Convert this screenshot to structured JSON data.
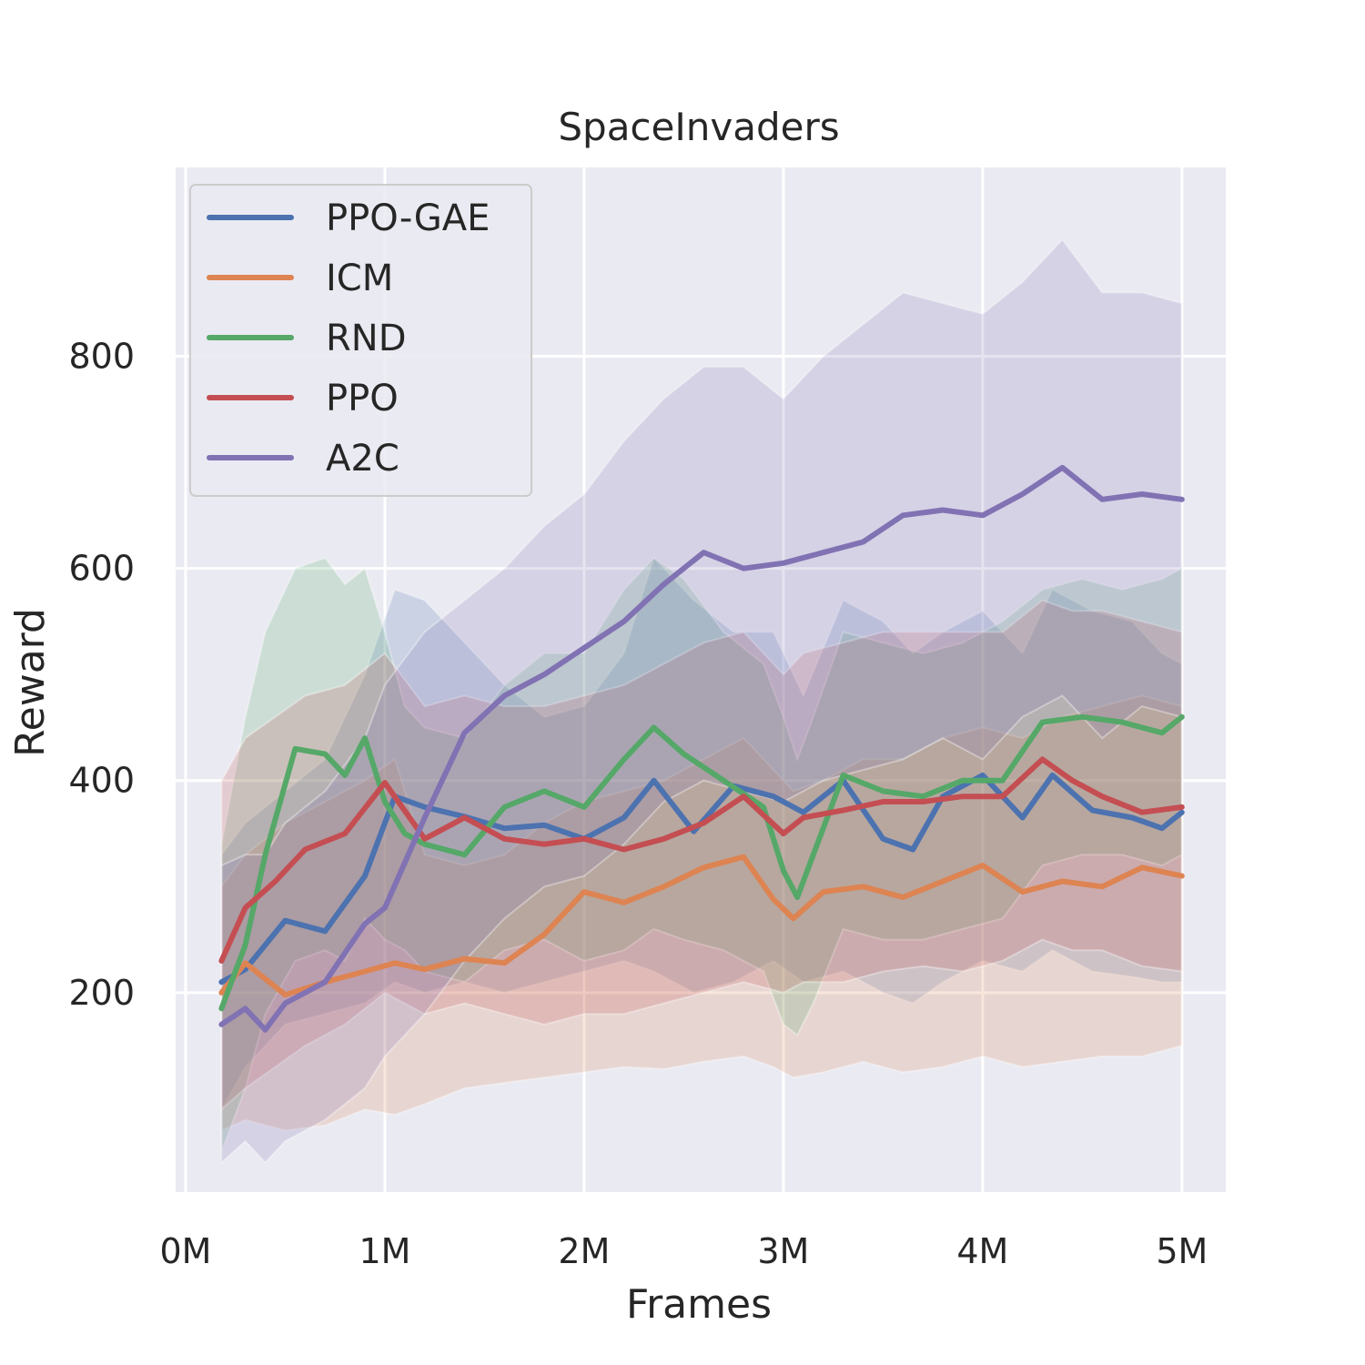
{
  "chart_data": {
    "type": "line",
    "title": "SpaceInvaders",
    "xlabel": "Frames",
    "ylabel": "Reward",
    "xlim": [
      -0.05,
      5.22
    ],
    "ylim": [
      12,
      978
    ],
    "x_unit": "M frames",
    "xticks": [
      0,
      1,
      2,
      3,
      4,
      5
    ],
    "xtick_labels": [
      "0M",
      "1M",
      "2M",
      "3M",
      "4M",
      "5M"
    ],
    "yticks": [
      200,
      400,
      600,
      800
    ],
    "ytick_labels": [
      "200",
      "400",
      "600",
      "800"
    ],
    "grid": true,
    "legend_position": "upper-left",
    "series": [
      {
        "name": "PPO-GAE",
        "color": "#4C72B0",
        "x": [
          0.18,
          0.3,
          0.5,
          0.7,
          0.9,
          1.05,
          1.2,
          1.4,
          1.6,
          1.8,
          2.0,
          2.2,
          2.35,
          2.55,
          2.75,
          2.95,
          3.1,
          3.3,
          3.5,
          3.65,
          3.8,
          4.0,
          4.2,
          4.35,
          4.55,
          4.75,
          4.9,
          5.0
        ],
        "y": [
          210,
          222,
          268,
          258,
          310,
          385,
          375,
          366,
          355,
          358,
          345,
          365,
          400,
          352,
          395,
          385,
          370,
          400,
          345,
          335,
          385,
          405,
          365,
          405,
          372,
          365,
          355,
          370
        ],
        "upper": [
          330,
          360,
          390,
          420,
          500,
          580,
          570,
          530,
          490,
          460,
          470,
          520,
          610,
          570,
          540,
          540,
          480,
          570,
          550,
          520,
          540,
          560,
          520,
          580,
          560,
          550,
          520,
          510
        ],
        "lower": [
          90,
          130,
          170,
          180,
          190,
          210,
          200,
          210,
          200,
          210,
          220,
          230,
          220,
          200,
          210,
          230,
          210,
          220,
          200,
          190,
          210,
          230,
          220,
          240,
          220,
          215,
          210,
          210
        ]
      },
      {
        "name": "ICM",
        "color": "#DD8452",
        "x": [
          0.18,
          0.3,
          0.5,
          0.7,
          0.9,
          1.05,
          1.2,
          1.4,
          1.6,
          1.8,
          2.0,
          2.2,
          2.4,
          2.6,
          2.8,
          2.95,
          3.05,
          3.2,
          3.4,
          3.6,
          3.8,
          4.0,
          4.2,
          4.4,
          4.6,
          4.8,
          5.0
        ],
        "y": [
          200,
          228,
          198,
          210,
          220,
          228,
          222,
          232,
          228,
          255,
          295,
          285,
          300,
          318,
          328,
          288,
          270,
          295,
          300,
          290,
          305,
          320,
          295,
          305,
          300,
          318,
          310
        ],
        "upper": [
          300,
          330,
          360,
          380,
          400,
          420,
          330,
          320,
          330,
          360,
          380,
          390,
          400,
          420,
          440,
          410,
          390,
          400,
          420,
          420,
          440,
          450,
          440,
          460,
          470,
          480,
          470
        ],
        "lower": [
          70,
          80,
          70,
          75,
          90,
          85,
          95,
          110,
          115,
          120,
          125,
          130,
          128,
          135,
          140,
          130,
          120,
          125,
          135,
          125,
          130,
          140,
          130,
          135,
          140,
          140,
          150
        ]
      },
      {
        "name": "RND",
        "color": "#55A868",
        "x": [
          0.18,
          0.3,
          0.4,
          0.55,
          0.7,
          0.8,
          0.9,
          1.0,
          1.1,
          1.2,
          1.4,
          1.6,
          1.8,
          2.0,
          2.2,
          2.35,
          2.5,
          2.7,
          2.9,
          3.0,
          3.07,
          3.15,
          3.3,
          3.5,
          3.7,
          3.9,
          4.1,
          4.3,
          4.5,
          4.7,
          4.9,
          5.0
        ],
        "y": [
          185,
          245,
          330,
          430,
          425,
          405,
          440,
          380,
          350,
          340,
          330,
          375,
          390,
          375,
          420,
          450,
          425,
          400,
          375,
          315,
          290,
          330,
          405,
          390,
          385,
          400,
          400,
          455,
          460,
          455,
          445,
          460
        ],
        "upper": [
          340,
          460,
          540,
          600,
          610,
          585,
          600,
          540,
          470,
          450,
          440,
          490,
          520,
          520,
          580,
          610,
          590,
          540,
          510,
          460,
          420,
          460,
          540,
          530,
          520,
          530,
          550,
          580,
          590,
          580,
          590,
          600
        ],
        "lower": [
          50,
          110,
          180,
          230,
          240,
          230,
          270,
          250,
          240,
          220,
          210,
          240,
          250,
          230,
          240,
          260,
          250,
          240,
          220,
          170,
          160,
          190,
          260,
          250,
          250,
          260,
          270,
          320,
          330,
          330,
          320,
          330
        ]
      },
      {
        "name": "PPO",
        "color": "#C44E52",
        "x": [
          0.18,
          0.3,
          0.45,
          0.6,
          0.8,
          1.0,
          1.2,
          1.4,
          1.6,
          1.8,
          2.0,
          2.2,
          2.4,
          2.6,
          2.8,
          3.0,
          3.1,
          3.3,
          3.5,
          3.7,
          3.9,
          4.1,
          4.3,
          4.45,
          4.6,
          4.8,
          5.0
        ],
        "y": [
          230,
          280,
          305,
          335,
          350,
          398,
          345,
          365,
          345,
          340,
          345,
          335,
          345,
          360,
          385,
          350,
          365,
          372,
          380,
          380,
          385,
          385,
          420,
          400,
          385,
          370,
          375
        ],
        "upper": [
          400,
          440,
          460,
          480,
          490,
          520,
          470,
          480,
          470,
          470,
          480,
          490,
          510,
          530,
          540,
          500,
          520,
          530,
          540,
          540,
          540,
          540,
          570,
          560,
          560,
          550,
          540
        ],
        "lower": [
          90,
          110,
          130,
          150,
          170,
          200,
          180,
          190,
          180,
          170,
          180,
          180,
          190,
          200,
          210,
          200,
          210,
          210,
          220,
          225,
          220,
          230,
          250,
          240,
          240,
          225,
          220
        ]
      },
      {
        "name": "A2C",
        "color": "#8172B3",
        "x": [
          0.18,
          0.3,
          0.4,
          0.5,
          0.7,
          0.9,
          1.0,
          1.2,
          1.4,
          1.6,
          1.8,
          2.0,
          2.2,
          2.4,
          2.6,
          2.8,
          3.0,
          3.2,
          3.4,
          3.6,
          3.8,
          4.0,
          4.2,
          4.4,
          4.6,
          4.8,
          5.0
        ],
        "y": [
          170,
          185,
          165,
          190,
          210,
          265,
          280,
          365,
          445,
          480,
          500,
          525,
          550,
          585,
          615,
          600,
          605,
          615,
          625,
          650,
          655,
          650,
          670,
          695,
          665,
          670,
          665
        ],
        "upper": [
          320,
          330,
          330,
          360,
          390,
          440,
          490,
          540,
          570,
          600,
          640,
          670,
          720,
          760,
          790,
          790,
          760,
          800,
          830,
          860,
          850,
          840,
          870,
          910,
          860,
          860,
          850
        ],
        "lower": [
          40,
          60,
          40,
          60,
          80,
          110,
          140,
          180,
          230,
          270,
          300,
          310,
          340,
          380,
          400,
          390,
          380,
          400,
          410,
          420,
          440,
          420,
          460,
          480,
          440,
          470,
          460
        ]
      }
    ]
  }
}
